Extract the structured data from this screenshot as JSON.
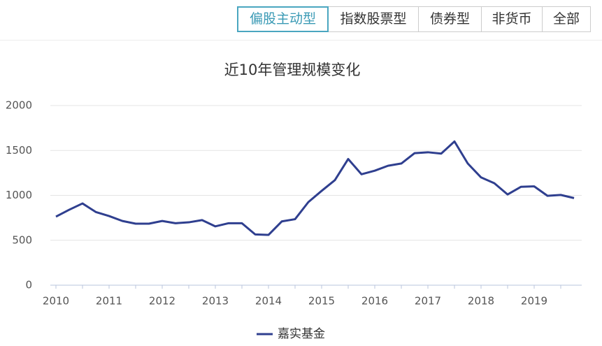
{
  "tabs": [
    {
      "label": "偏股主动型",
      "active": true
    },
    {
      "label": "指数股票型"
    },
    {
      "label": "债券型"
    },
    {
      "label": "非货币"
    },
    {
      "label": "全部"
    }
  ],
  "chart_data": {
    "type": "line",
    "title": "近10年管理规模变化",
    "categories": [
      "2010",
      null,
      null,
      null,
      "2011",
      null,
      null,
      null,
      "2012",
      null,
      null,
      null,
      "2013",
      null,
      null,
      null,
      "2014",
      null,
      null,
      null,
      "2015",
      null,
      null,
      null,
      "2016",
      null,
      null,
      null,
      "2017",
      null,
      null,
      null,
      "2018",
      null,
      null,
      null,
      "2019",
      null,
      null,
      null
    ],
    "series": [
      {
        "name": "嘉实基金",
        "color": "#2f3f8f",
        "values": [
          763,
          840,
          910,
          815,
          770,
          715,
          685,
          685,
          715,
          690,
          700,
          725,
          655,
          690,
          690,
          565,
          560,
          710,
          735,
          925,
          1050,
          1170,
          1405,
          1235,
          1275,
          1330,
          1355,
          1470,
          1480,
          1465,
          1600,
          1355,
          1200,
          1135,
          1010,
          1095,
          1100,
          995,
          1005,
          970
        ]
      }
    ],
    "ylim": [
      0,
      2000
    ],
    "yticks": [
      0,
      500,
      1000,
      1500,
      2000
    ],
    "grid": true,
    "legend": "bottom"
  }
}
